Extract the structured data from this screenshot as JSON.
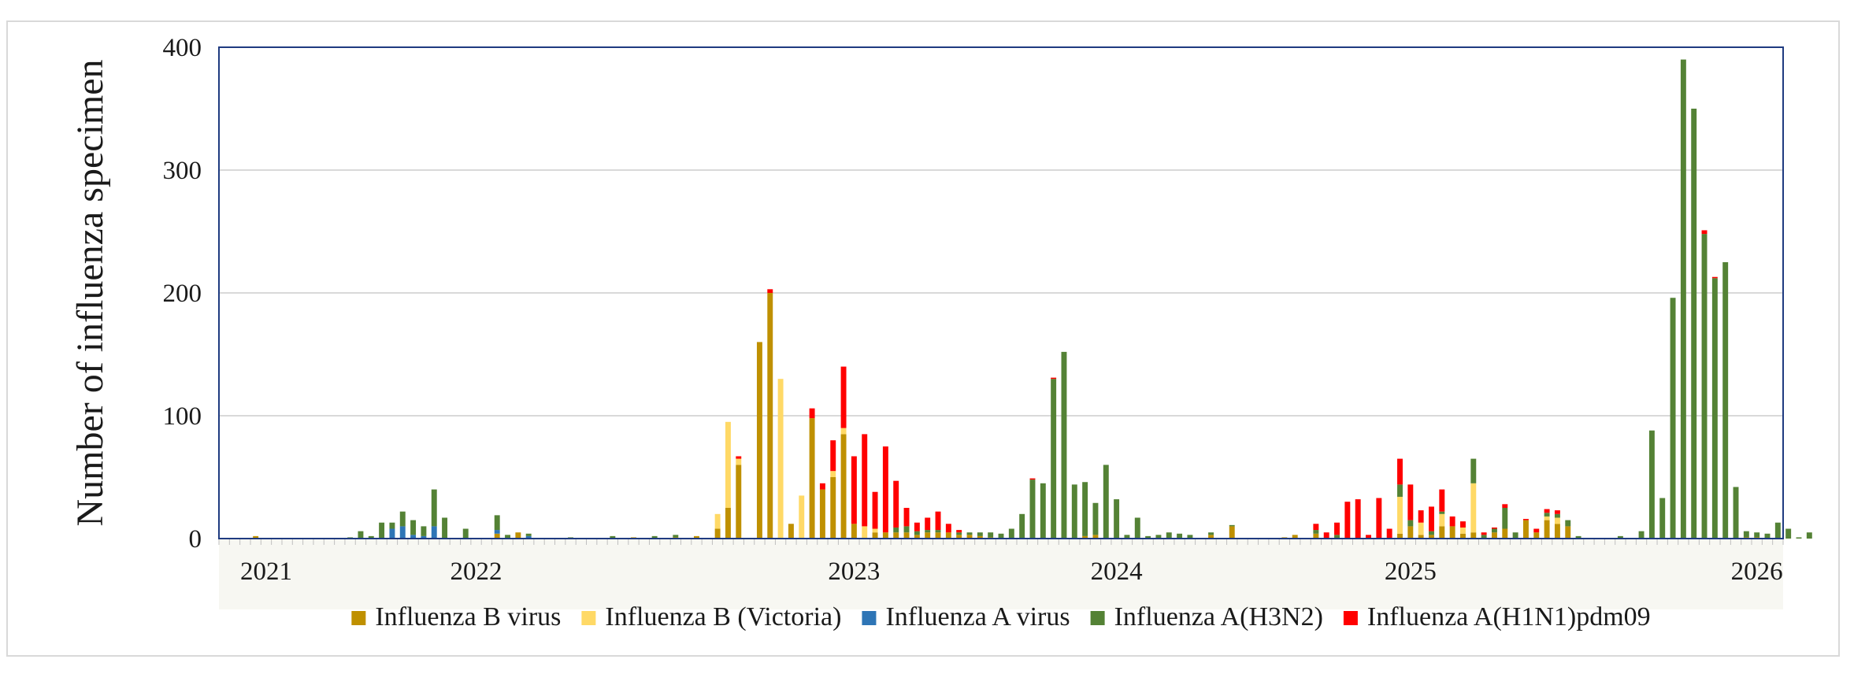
{
  "chart_data": {
    "type": "bar",
    "stacked": true,
    "title": "",
    "xlabel": "",
    "ylabel": "Number of influenza specimen",
    "ylim": [
      0,
      400
    ],
    "yticks": [
      0,
      100,
      200,
      300,
      400
    ],
    "grid": true,
    "legend_position": "bottom",
    "year_labels": [
      {
        "label": "2021",
        "week": 4
      },
      {
        "label": "2022",
        "week": 24
      },
      {
        "label": "2023",
        "week": 60
      },
      {
        "label": "2024",
        "week": 85
      },
      {
        "label": "2025",
        "week": 113
      },
      {
        "label": "2026",
        "week": 146
      }
    ],
    "num_weeks": 149,
    "series": [
      {
        "name": "Influenza B virus",
        "color": "#bf9000",
        "points": [
          [
            3,
            2
          ],
          [
            26,
            4
          ],
          [
            28,
            5
          ],
          [
            39,
            1
          ],
          [
            43,
            1
          ],
          [
            45,
            2
          ],
          [
            47,
            8
          ],
          [
            48,
            25
          ],
          [
            49,
            60
          ],
          [
            51,
            160
          ],
          [
            52,
            200
          ],
          [
            54,
            12
          ],
          [
            56,
            98
          ],
          [
            57,
            40
          ],
          [
            58,
            50
          ],
          [
            59,
            85
          ],
          [
            60,
            12
          ],
          [
            62,
            5
          ],
          [
            63,
            5
          ],
          [
            64,
            5
          ],
          [
            65,
            5
          ],
          [
            66,
            3
          ],
          [
            67,
            5
          ],
          [
            68,
            5
          ],
          [
            69,
            5
          ],
          [
            70,
            3
          ],
          [
            71,
            3
          ],
          [
            72,
            2
          ],
          [
            73,
            1
          ],
          [
            82,
            2
          ],
          [
            83,
            3
          ],
          [
            94,
            3
          ],
          [
            96,
            10
          ],
          [
            101,
            1
          ],
          [
            102,
            3
          ],
          [
            104,
            4
          ],
          [
            112,
            4
          ],
          [
            113,
            10
          ],
          [
            114,
            3
          ],
          [
            115,
            3
          ],
          [
            116,
            10
          ],
          [
            117,
            10
          ],
          [
            118,
            4
          ],
          [
            119,
            5
          ],
          [
            121,
            5
          ],
          [
            122,
            8
          ],
          [
            124,
            15
          ],
          [
            125,
            5
          ],
          [
            126,
            15
          ],
          [
            127,
            12
          ],
          [
            128,
            10
          ],
          [
            145,
            1
          ],
          [
            146,
            1
          ]
        ]
      },
      {
        "name": "Influenza B (Victoria)",
        "color": "#ffd966",
        "points": [
          [
            47,
            12
          ],
          [
            48,
            70
          ],
          [
            49,
            5
          ],
          [
            53,
            130
          ],
          [
            55,
            35
          ],
          [
            58,
            5
          ],
          [
            59,
            5
          ],
          [
            61,
            10
          ],
          [
            62,
            3
          ],
          [
            112,
            30
          ],
          [
            114,
            10
          ],
          [
            116,
            10
          ],
          [
            118,
            5
          ],
          [
            119,
            40
          ],
          [
            126,
            3
          ],
          [
            127,
            5
          ]
        ]
      },
      {
        "name": "Influenza A virus",
        "color": "#2e75b6",
        "points": [
          [
            16,
            8
          ],
          [
            17,
            10
          ],
          [
            18,
            3
          ],
          [
            19,
            2
          ],
          [
            20,
            10
          ],
          [
            26,
            3
          ],
          [
            29,
            2
          ]
        ]
      },
      {
        "name": "Influenza A(H3N2)",
        "color": "#548235",
        "points": [
          [
            12,
            1
          ],
          [
            13,
            6
          ],
          [
            14,
            2
          ],
          [
            15,
            13
          ],
          [
            16,
            5
          ],
          [
            17,
            12
          ],
          [
            18,
            12
          ],
          [
            19,
            8
          ],
          [
            20,
            30
          ],
          [
            21,
            17
          ],
          [
            23,
            8
          ],
          [
            26,
            12
          ],
          [
            27,
            3
          ],
          [
            29,
            2
          ],
          [
            33,
            1
          ],
          [
            37,
            2
          ],
          [
            41,
            2
          ],
          [
            43,
            2
          ],
          [
            64,
            4
          ],
          [
            65,
            5
          ],
          [
            66,
            3
          ],
          [
            67,
            2
          ],
          [
            68,
            2
          ],
          [
            70,
            2
          ],
          [
            71,
            2
          ],
          [
            72,
            3
          ],
          [
            73,
            4
          ],
          [
            74,
            4
          ],
          [
            75,
            8
          ],
          [
            76,
            20
          ],
          [
            77,
            48
          ],
          [
            78,
            45
          ],
          [
            79,
            130
          ],
          [
            80,
            152
          ],
          [
            81,
            44
          ],
          [
            82,
            44
          ],
          [
            83,
            26
          ],
          [
            84,
            60
          ],
          [
            85,
            32
          ],
          [
            86,
            3
          ],
          [
            87,
            17
          ],
          [
            88,
            2
          ],
          [
            89,
            3
          ],
          [
            90,
            5
          ],
          [
            91,
            4
          ],
          [
            92,
            3
          ],
          [
            94,
            2
          ],
          [
            96,
            1
          ],
          [
            104,
            3
          ],
          [
            106,
            3
          ],
          [
            112,
            10
          ],
          [
            113,
            5
          ],
          [
            115,
            3
          ],
          [
            116,
            2
          ],
          [
            119,
            20
          ],
          [
            120,
            3
          ],
          [
            121,
            3
          ],
          [
            122,
            17
          ],
          [
            123,
            5
          ],
          [
            126,
            3
          ],
          [
            127,
            3
          ],
          [
            128,
            5
          ],
          [
            129,
            2
          ],
          [
            133,
            2
          ],
          [
            135,
            6
          ],
          [
            136,
            88
          ],
          [
            137,
            33
          ],
          [
            138,
            196
          ],
          [
            139,
            390
          ],
          [
            140,
            350
          ],
          [
            141,
            248
          ],
          [
            142,
            212
          ],
          [
            143,
            225
          ],
          [
            144,
            42
          ],
          [
            145,
            5
          ],
          [
            146,
            4
          ],
          [
            147,
            4
          ],
          [
            148,
            13
          ],
          [
            149,
            8
          ],
          [
            150,
            1
          ],
          [
            151,
            5
          ]
        ]
      },
      {
        "name": "Influenza A(H1N1)pdm09",
        "color": "#ff0000",
        "points": [
          [
            49,
            2
          ],
          [
            52,
            3
          ],
          [
            56,
            8
          ],
          [
            57,
            5
          ],
          [
            58,
            25
          ],
          [
            59,
            50
          ],
          [
            60,
            55
          ],
          [
            61,
            75
          ],
          [
            62,
            30
          ],
          [
            63,
            70
          ],
          [
            64,
            38
          ],
          [
            65,
            15
          ],
          [
            66,
            7
          ],
          [
            67,
            10
          ],
          [
            68,
            15
          ],
          [
            69,
            7
          ],
          [
            70,
            2
          ],
          [
            77,
            1
          ],
          [
            79,
            1
          ],
          [
            104,
            5
          ],
          [
            105,
            5
          ],
          [
            106,
            10
          ],
          [
            107,
            30
          ],
          [
            108,
            32
          ],
          [
            109,
            3
          ],
          [
            110,
            33
          ],
          [
            111,
            8
          ],
          [
            112,
            21
          ],
          [
            113,
            29
          ],
          [
            114,
            10
          ],
          [
            115,
            20
          ],
          [
            116,
            18
          ],
          [
            117,
            8
          ],
          [
            118,
            5
          ],
          [
            120,
            2
          ],
          [
            121,
            1
          ],
          [
            122,
            3
          ],
          [
            124,
            1
          ],
          [
            125,
            3
          ],
          [
            126,
            3
          ],
          [
            127,
            3
          ],
          [
            141,
            3
          ],
          [
            142,
            1
          ]
        ]
      }
    ]
  }
}
